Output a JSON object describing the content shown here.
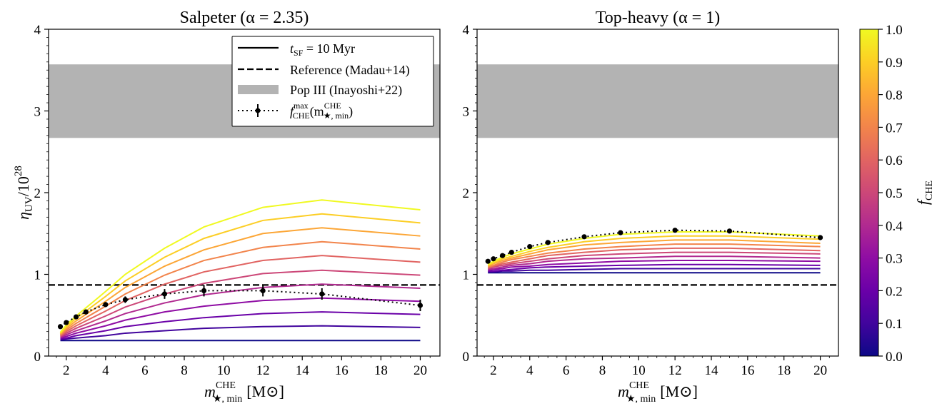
{
  "chart_data": [
    {
      "type": "line",
      "title": "Salpeter (α = 2.35)",
      "xlabel_main": "m",
      "xlabel_sup": "CHE",
      "xlabel_sub": "★, min",
      "xlabel_unit": "[M⊙]",
      "ylabel_main": "η",
      "ylabel_sub": "UV",
      "ylabel_tail": "/10",
      "ylabel_exp": "28",
      "xlim": [
        1.1,
        21.0
      ],
      "ylim": [
        0,
        4
      ],
      "x": [
        1.7,
        2.0,
        2.5,
        3.0,
        4.0,
        5.0,
        7.0,
        9.0,
        12.0,
        15.0,
        20.0
      ],
      "xticks": [
        2,
        4,
        6,
        8,
        10,
        12,
        14,
        16,
        18,
        20
      ],
      "yticks": [
        0,
        1,
        2,
        3,
        4
      ],
      "reference_line": 0.87,
      "popIII_band": [
        2.67,
        3.57
      ],
      "series": [
        {
          "f": 0.0,
          "values": [
            0.19,
            0.19,
            0.19,
            0.19,
            0.19,
            0.19,
            0.19,
            0.19,
            0.19,
            0.19,
            0.19
          ]
        },
        {
          "f": 0.1,
          "values": [
            0.2,
            0.21,
            0.22,
            0.23,
            0.25,
            0.28,
            0.31,
            0.34,
            0.36,
            0.37,
            0.35
          ]
        },
        {
          "f": 0.2,
          "values": [
            0.21,
            0.22,
            0.25,
            0.27,
            0.31,
            0.36,
            0.42,
            0.47,
            0.52,
            0.54,
            0.51
          ]
        },
        {
          "f": 0.3,
          "values": [
            0.22,
            0.24,
            0.28,
            0.31,
            0.37,
            0.44,
            0.54,
            0.61,
            0.68,
            0.71,
            0.67
          ]
        },
        {
          "f": 0.4,
          "values": [
            0.23,
            0.26,
            0.31,
            0.35,
            0.43,
            0.52,
            0.65,
            0.75,
            0.84,
            0.88,
            0.83
          ]
        },
        {
          "f": 0.5,
          "values": [
            0.24,
            0.28,
            0.34,
            0.39,
            0.49,
            0.6,
            0.76,
            0.89,
            1.01,
            1.05,
            0.99
          ]
        },
        {
          "f": 0.6,
          "values": [
            0.25,
            0.3,
            0.37,
            0.43,
            0.55,
            0.68,
            0.88,
            1.03,
            1.17,
            1.23,
            1.15
          ]
        },
        {
          "f": 0.7,
          "values": [
            0.26,
            0.32,
            0.4,
            0.47,
            0.61,
            0.76,
            0.99,
            1.17,
            1.33,
            1.4,
            1.31
          ]
        },
        {
          "f": 0.8,
          "values": [
            0.27,
            0.34,
            0.43,
            0.51,
            0.67,
            0.84,
            1.1,
            1.3,
            1.5,
            1.57,
            1.47
          ]
        },
        {
          "f": 0.9,
          "values": [
            0.28,
            0.36,
            0.46,
            0.55,
            0.73,
            0.92,
            1.21,
            1.44,
            1.66,
            1.74,
            1.63
          ]
        },
        {
          "f": 1.0,
          "values": [
            0.29,
            0.38,
            0.49,
            0.59,
            0.79,
            1.0,
            1.32,
            1.58,
            1.82,
            1.91,
            1.79
          ]
        }
      ],
      "fmax_points": [
        {
          "x": 1.7,
          "y": 0.36,
          "err": 0.02
        },
        {
          "x": 2.0,
          "y": 0.41,
          "err": 0.02
        },
        {
          "x": 2.5,
          "y": 0.48,
          "err": 0.02
        },
        {
          "x": 3.0,
          "y": 0.54,
          "err": 0.03
        },
        {
          "x": 4.0,
          "y": 0.63,
          "err": 0.03
        },
        {
          "x": 5.0,
          "y": 0.69,
          "err": 0.04
        },
        {
          "x": 7.0,
          "y": 0.76,
          "err": 0.06
        },
        {
          "x": 9.0,
          "y": 0.8,
          "err": 0.07
        },
        {
          "x": 12.0,
          "y": 0.8,
          "err": 0.07
        },
        {
          "x": 15.0,
          "y": 0.76,
          "err": 0.07
        },
        {
          "x": 20.0,
          "y": 0.62,
          "err": 0.07
        }
      ],
      "legend": {
        "placement": "top-right",
        "entries": [
          {
            "kind": "solid",
            "main": "t",
            "sub": "SF",
            "tail": " = 10 Myr"
          },
          {
            "kind": "dashed",
            "label": "Reference (Madau+14)"
          },
          {
            "kind": "band",
            "label": "Pop III (Inayoshi+22)"
          },
          {
            "kind": "dotted-errorbar",
            "main": "f",
            "sup": "max",
            "sub": "CHE",
            "tail1": "(m",
            "sup2": "CHE",
            "sub2": "★, min",
            "tail2": ")"
          }
        ]
      }
    },
    {
      "type": "line",
      "title": "Top-heavy (α = 1)",
      "xlabel_main": "m",
      "xlabel_sup": "CHE",
      "xlabel_sub": "★, min",
      "xlabel_unit": "[M⊙]",
      "xlim": [
        1.1,
        21.0
      ],
      "ylim": [
        0,
        4
      ],
      "x": [
        1.7,
        2.0,
        2.5,
        3.0,
        4.0,
        5.0,
        7.0,
        9.0,
        12.0,
        15.0,
        20.0
      ],
      "xticks": [
        2,
        4,
        6,
        8,
        10,
        12,
        14,
        16,
        18,
        20
      ],
      "yticks": [
        0,
        1,
        2,
        3,
        4
      ],
      "reference_line": 0.87,
      "popIII_band": [
        2.67,
        3.57
      ],
      "series": [
        {
          "f": 0.0,
          "values": [
            1.02,
            1.02,
            1.02,
            1.02,
            1.02,
            1.02,
            1.02,
            1.02,
            1.02,
            1.02,
            1.02
          ]
        },
        {
          "f": 0.1,
          "values": [
            1.03,
            1.03,
            1.04,
            1.04,
            1.05,
            1.05,
            1.06,
            1.07,
            1.07,
            1.07,
            1.07
          ]
        },
        {
          "f": 0.2,
          "values": [
            1.04,
            1.04,
            1.05,
            1.06,
            1.08,
            1.09,
            1.1,
            1.11,
            1.12,
            1.12,
            1.11
          ]
        },
        {
          "f": 0.3,
          "values": [
            1.05,
            1.06,
            1.07,
            1.09,
            1.1,
            1.12,
            1.14,
            1.16,
            1.17,
            1.17,
            1.16
          ]
        },
        {
          "f": 0.4,
          "values": [
            1.06,
            1.07,
            1.09,
            1.11,
            1.13,
            1.16,
            1.19,
            1.2,
            1.22,
            1.22,
            1.2
          ]
        },
        {
          "f": 0.5,
          "values": [
            1.07,
            1.09,
            1.11,
            1.13,
            1.16,
            1.19,
            1.23,
            1.25,
            1.27,
            1.27,
            1.25
          ]
        },
        {
          "f": 0.6,
          "values": [
            1.08,
            1.1,
            1.13,
            1.15,
            1.19,
            1.23,
            1.27,
            1.3,
            1.32,
            1.32,
            1.29
          ]
        },
        {
          "f": 0.7,
          "values": [
            1.09,
            1.11,
            1.15,
            1.18,
            1.22,
            1.26,
            1.31,
            1.34,
            1.37,
            1.37,
            1.34
          ]
        },
        {
          "f": 0.8,
          "values": [
            1.1,
            1.13,
            1.17,
            1.2,
            1.25,
            1.3,
            1.36,
            1.39,
            1.42,
            1.42,
            1.38
          ]
        },
        {
          "f": 0.9,
          "values": [
            1.11,
            1.14,
            1.19,
            1.22,
            1.28,
            1.33,
            1.4,
            1.44,
            1.47,
            1.47,
            1.43
          ]
        },
        {
          "f": 1.0,
          "values": [
            1.12,
            1.16,
            1.21,
            1.25,
            1.31,
            1.37,
            1.44,
            1.49,
            1.52,
            1.52,
            1.47
          ]
        }
      ],
      "fmax_points": [
        {
          "x": 1.7,
          "y": 1.16
        },
        {
          "x": 2.0,
          "y": 1.19
        },
        {
          "x": 2.5,
          "y": 1.23
        },
        {
          "x": 3.0,
          "y": 1.27
        },
        {
          "x": 4.0,
          "y": 1.34
        },
        {
          "x": 5.0,
          "y": 1.39
        },
        {
          "x": 7.0,
          "y": 1.46
        },
        {
          "x": 9.0,
          "y": 1.51
        },
        {
          "x": 12.0,
          "y": 1.54
        },
        {
          "x": 15.0,
          "y": 1.53
        },
        {
          "x": 20.0,
          "y": 1.45
        }
      ]
    }
  ],
  "colorbar": {
    "label_main": "f",
    "label_sub": "CHE",
    "range": [
      0,
      1
    ],
    "ticks": [
      "0.0",
      "0.1",
      "0.2",
      "0.3",
      "0.4",
      "0.5",
      "0.6",
      "0.7",
      "0.8",
      "0.9",
      "1.0"
    ],
    "stops": [
      "#0d0887",
      "#41049d",
      "#6a00a8",
      "#8f0da4",
      "#b12a90",
      "#cc4778",
      "#e16462",
      "#f2844b",
      "#fca636",
      "#fcce25",
      "#f0f921"
    ]
  },
  "colors": {
    "band": "#b3b3b3",
    "ink": "#000000"
  }
}
